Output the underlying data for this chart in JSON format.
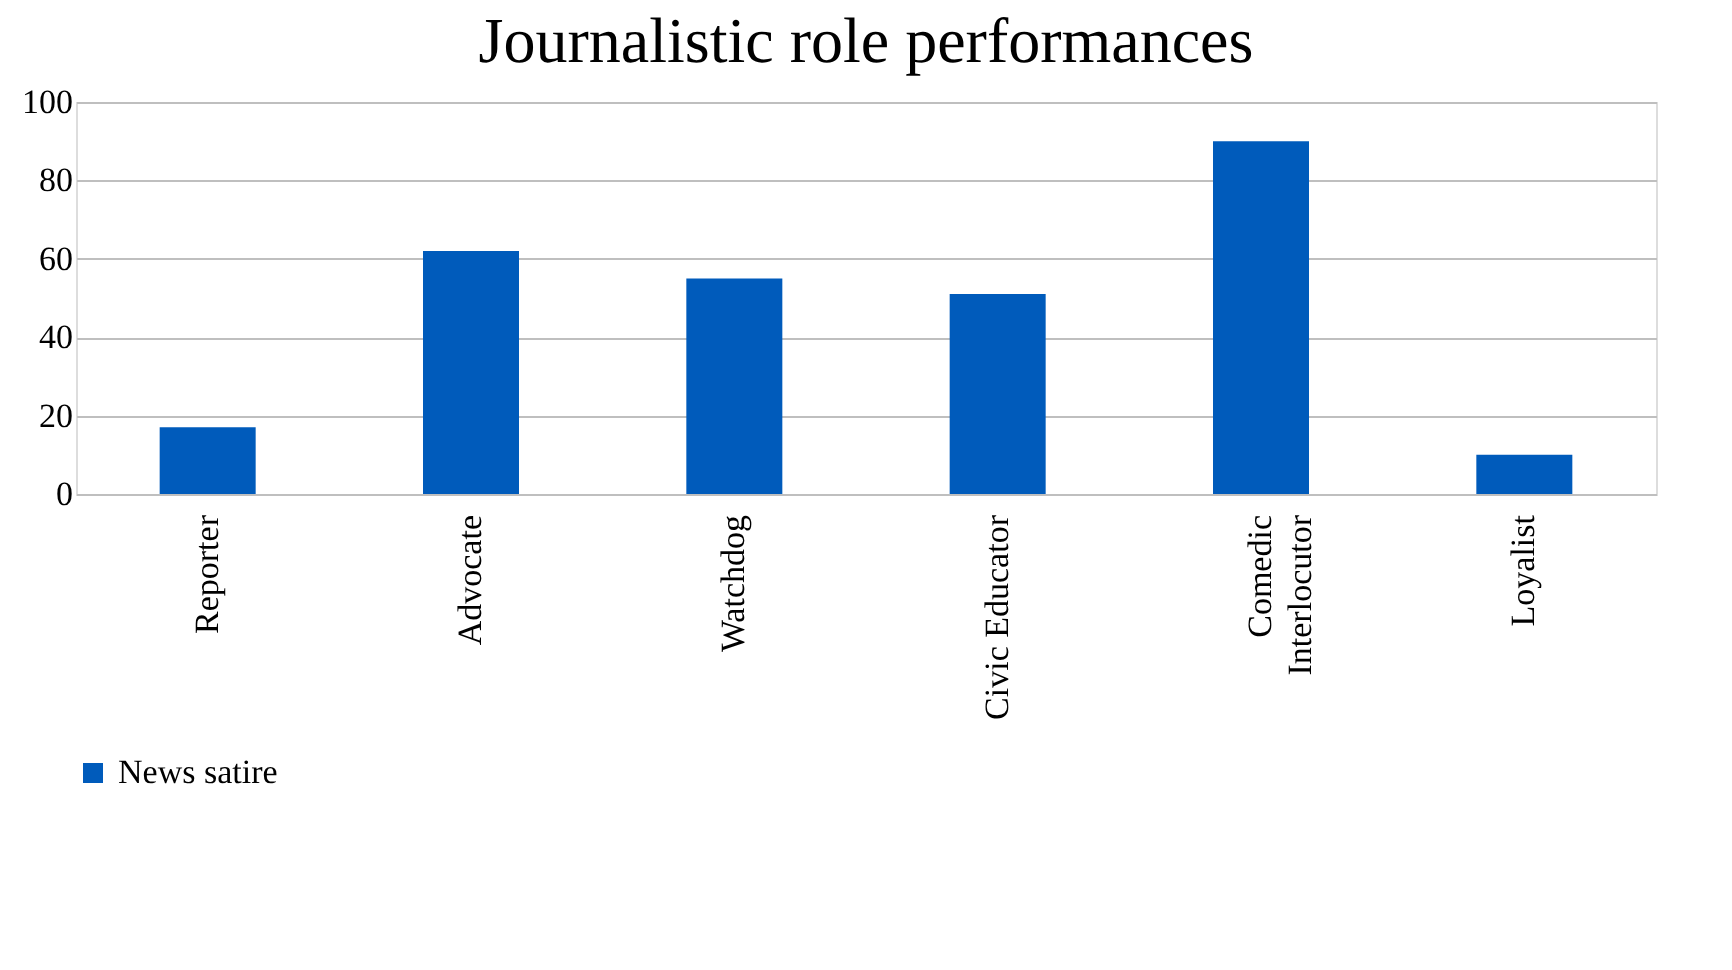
{
  "chart_data": {
    "type": "bar",
    "title": "Journalistic role performances",
    "categories": [
      "Reporter",
      "Advocate",
      "Watchdog",
      "Civic Educator",
      "Comedic Interlocutor",
      "Loyalist"
    ],
    "series": [
      {
        "name": "News satire",
        "color": "#005bbb",
        "values": [
          17,
          62,
          55,
          51,
          90,
          10
        ]
      }
    ],
    "ylim": [
      0,
      100
    ],
    "yticks": [
      0,
      20,
      40,
      60,
      80,
      100
    ],
    "grid": "y",
    "legend": "bottom"
  }
}
